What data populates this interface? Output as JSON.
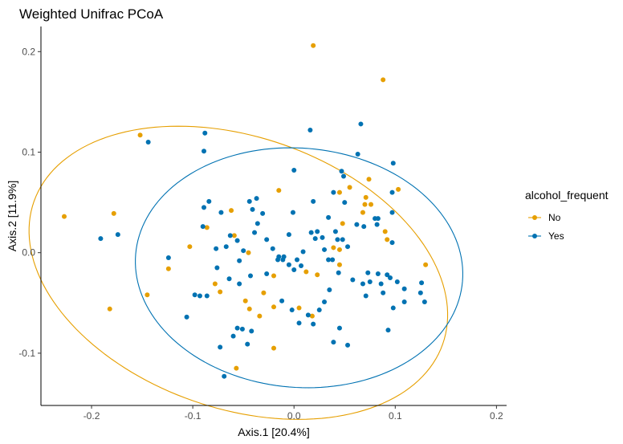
{
  "chart_data": {
    "type": "scatter",
    "title": "Weighted Unifrac PCoA",
    "xlabel": "Axis.1 [20.4%]",
    "ylabel": "Axis.2 [11.9%]",
    "xlim": [
      -0.25,
      0.21
    ],
    "ylim": [
      -0.152,
      0.225
    ],
    "x_ticks": [
      -0.2,
      -0.1,
      0.0,
      0.1,
      0.2
    ],
    "x_tick_labels": [
      "-0.2",
      "-0.1",
      "0.0",
      "0.1",
      "0.2"
    ],
    "y_ticks": [
      -0.1,
      0.0,
      0.1,
      0.2
    ],
    "y_tick_labels": [
      "-0.1",
      "0.0",
      "0.1",
      "0.2"
    ],
    "grid": false,
    "legend": {
      "title": "alcohol_frequent",
      "placement": "right"
    },
    "series": [
      {
        "name": "No",
        "color": "#E69F00",
        "ellipse": {
          "cx": -0.055,
          "cy": -0.02,
          "rx": 0.214,
          "ry": 0.135,
          "angle_deg": -19.4
        },
        "points": [
          [
            0.019,
            0.206
          ],
          [
            0.088,
            0.172
          ],
          [
            -0.152,
            0.117
          ],
          [
            -0.227,
            0.036
          ],
          [
            -0.178,
            0.039
          ],
          [
            -0.124,
            -0.016
          ],
          [
            -0.182,
            -0.056
          ],
          [
            -0.145,
            -0.042
          ],
          [
            -0.103,
            0.006
          ],
          [
            -0.086,
            0.025
          ],
          [
            -0.062,
            0.042
          ],
          [
            -0.059,
            0.017
          ],
          [
            -0.078,
            -0.031
          ],
          [
            -0.073,
            -0.039
          ],
          [
            -0.057,
            -0.115
          ],
          [
            -0.044,
            -0.056
          ],
          [
            -0.048,
            -0.048
          ],
          [
            -0.034,
            -0.063
          ],
          [
            -0.02,
            -0.023
          ],
          [
            -0.015,
            0.062
          ],
          [
            -0.02,
            -0.054
          ],
          [
            -0.02,
            -0.095
          ],
          [
            0.005,
            -0.055
          ],
          [
            0.012,
            -0.019
          ],
          [
            0.018,
            -0.063
          ],
          [
            0.023,
            -0.022
          ],
          [
            0.045,
            0.06
          ],
          [
            0.055,
            0.065
          ],
          [
            0.071,
            0.055
          ],
          [
            0.074,
            0.073
          ],
          [
            0.07,
            0.048
          ],
          [
            0.076,
            0.048
          ],
          [
            0.048,
            0.029
          ],
          [
            0.045,
            -0.012
          ],
          [
            0.068,
            0.04
          ],
          [
            0.103,
            0.063
          ],
          [
            0.09,
            0.021
          ],
          [
            0.092,
            0.013
          ],
          [
            0.13,
            -0.012
          ],
          [
            0.039,
            0.005
          ],
          [
            0.045,
            0.003
          ],
          [
            -0.03,
            -0.04
          ],
          [
            -0.045,
            0.0
          ]
        ]
      },
      {
        "name": "Yes",
        "color": "#0072B2",
        "ellipse": {
          "cx": 0.005,
          "cy": -0.015,
          "rx": 0.162,
          "ry": 0.119,
          "angle_deg": -4.8
        },
        "points": [
          [
            -0.088,
            0.119
          ],
          [
            -0.144,
            0.11
          ],
          [
            -0.089,
            0.101
          ],
          [
            0.016,
            0.122
          ],
          [
            0.066,
            0.128
          ],
          [
            0.063,
            0.098
          ],
          [
            -0.174,
            0.018
          ],
          [
            -0.191,
            0.014
          ],
          [
            -0.084,
            0.051
          ],
          [
            -0.089,
            0.045
          ],
          [
            -0.072,
            0.04
          ],
          [
            -0.09,
            0.026
          ],
          [
            -0.063,
            0.017
          ],
          [
            -0.067,
            0.006
          ],
          [
            -0.077,
            0.004
          ],
          [
            -0.056,
            0.012
          ],
          [
            -0.05,
            0.002
          ],
          [
            -0.054,
            -0.008
          ],
          [
            -0.037,
            0.054
          ],
          [
            -0.044,
            0.051
          ],
          [
            -0.041,
            0.043
          ],
          [
            -0.031,
            0.039
          ],
          [
            -0.039,
            0.02
          ],
          [
            -0.036,
            0.029
          ],
          [
            -0.027,
            0.013
          ],
          [
            -0.021,
            0.004
          ],
          [
            -0.015,
            -0.004
          ],
          [
            -0.011,
            -0.007
          ],
          [
            -0.005,
            0.018
          ],
          [
            -0.001,
            0.04
          ],
          [
            0.0,
            0.082
          ],
          [
            0.019,
            0.051
          ],
          [
            0.034,
            0.035
          ],
          [
            0.043,
            0.013
          ],
          [
            0.048,
            0.013
          ],
          [
            0.047,
            0.081
          ],
          [
            0.039,
            0.06
          ],
          [
            0.049,
            0.076
          ],
          [
            0.098,
            0.089
          ],
          [
            0.097,
            0.06
          ],
          [
            0.097,
            0.04
          ],
          [
            0.08,
            0.034
          ],
          [
            0.062,
            0.028
          ],
          [
            0.082,
            0.028
          ],
          [
            0.069,
            0.026
          ],
          [
            0.041,
            0.021
          ],
          [
            0.023,
            0.021
          ],
          [
            0.017,
            0.02
          ],
          [
            0.009,
            0.001
          ],
          [
            0.007,
            -0.013
          ],
          [
            0.003,
            -0.007
          ],
          [
            0.0,
            -0.017
          ],
          [
            -0.005,
            -0.012
          ],
          [
            -0.01,
            -0.004
          ],
          [
            -0.016,
            -0.007
          ],
          [
            -0.027,
            -0.021
          ],
          [
            -0.043,
            -0.023
          ],
          [
            -0.054,
            -0.031
          ],
          [
            -0.064,
            -0.026
          ],
          [
            -0.076,
            -0.015
          ],
          [
            -0.086,
            -0.043
          ],
          [
            -0.098,
            -0.042
          ],
          [
            -0.106,
            -0.064
          ],
          [
            -0.124,
            -0.005
          ],
          [
            -0.093,
            -0.043
          ],
          [
            0.034,
            -0.007
          ],
          [
            0.038,
            -0.007
          ],
          [
            0.044,
            -0.02
          ],
          [
            0.058,
            -0.027
          ],
          [
            0.068,
            -0.031
          ],
          [
            0.073,
            -0.02
          ],
          [
            0.071,
            -0.043
          ],
          [
            0.075,
            -0.029
          ],
          [
            0.086,
            -0.031
          ],
          [
            0.088,
            -0.04
          ],
          [
            0.095,
            -0.025
          ],
          [
            0.102,
            -0.029
          ],
          [
            0.098,
            -0.055
          ],
          [
            0.109,
            -0.036
          ],
          [
            0.125,
            -0.04
          ],
          [
            0.093,
            -0.077
          ],
          [
            0.045,
            -0.075
          ],
          [
            0.053,
            -0.092
          ],
          [
            0.039,
            -0.089
          ],
          [
            -0.042,
            -0.078
          ],
          [
            -0.046,
            -0.091
          ],
          [
            -0.051,
            -0.076
          ],
          [
            -0.06,
            -0.083
          ],
          [
            -0.073,
            -0.094
          ],
          [
            -0.069,
            -0.123
          ],
          [
            -0.056,
            -0.075
          ],
          [
            0.014,
            -0.062
          ],
          [
            0.025,
            -0.057
          ],
          [
            0.03,
            -0.049
          ],
          [
            0.035,
            -0.037
          ],
          [
            0.019,
            -0.071
          ],
          [
            0.005,
            -0.07
          ],
          [
            -0.012,
            -0.048
          ],
          [
            -0.002,
            -0.057
          ],
          [
            0.109,
            -0.049
          ],
          [
            0.05,
            0.05
          ],
          [
            0.083,
            0.034
          ],
          [
            0.083,
            -0.021
          ],
          [
            0.097,
            0.01
          ],
          [
            0.129,
            -0.049
          ],
          [
            0.126,
            -0.03
          ],
          [
            0.092,
            -0.022
          ],
          [
            0.021,
            0.014
          ],
          [
            0.028,
            0.015
          ],
          [
            0.053,
            0.006
          ],
          [
            0.03,
            0.003
          ]
        ]
      }
    ]
  }
}
